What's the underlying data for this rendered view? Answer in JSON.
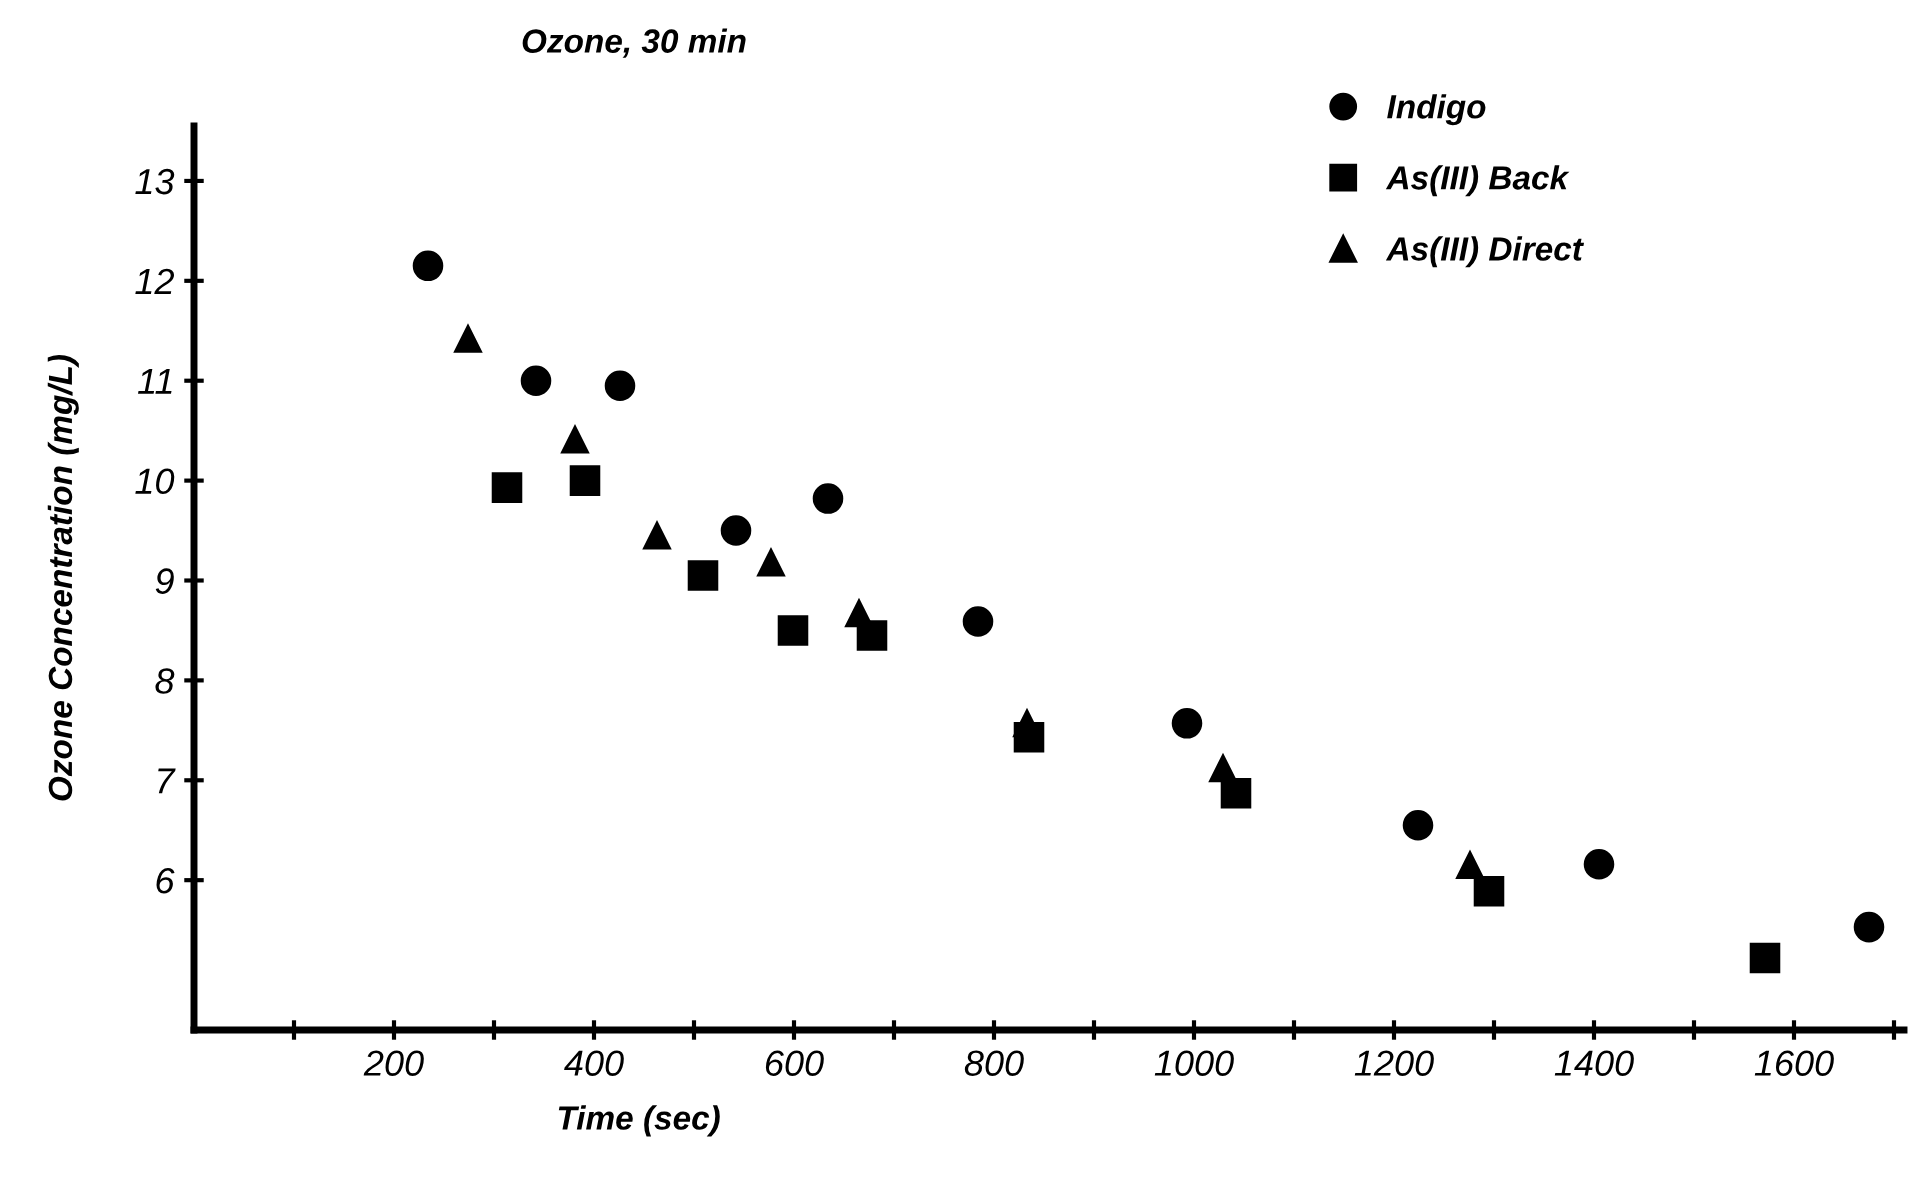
{
  "chart_data": {
    "type": "scatter",
    "title": "Ozone, 30 min",
    "xlabel": "Time (sec)",
    "ylabel": "Ozone Concentration (mg/L)",
    "series": [
      {
        "name": "Indigo",
        "color": "#000000",
        "marker": "circle",
        "x": [
          234,
          342,
          426,
          542,
          634,
          784,
          993,
          1224,
          1405,
          1675
        ],
        "values": [
          12.15,
          11.0,
          10.95,
          9.5,
          9.82,
          8.59,
          7.57,
          6.55,
          6.16,
          5.53
        ]
      },
      {
        "name": "As(III) Back",
        "color": "#000000",
        "marker": "square",
        "x": [
          313,
          391,
          509,
          599,
          678,
          835,
          1042,
          1295,
          1571
        ],
        "values": [
          9.93,
          10.0,
          9.05,
          8.5,
          8.45,
          7.43,
          6.87,
          5.89,
          5.22
        ]
      },
      {
        "name": "As(III) Direct",
        "color": "#000000",
        "marker": "triangle",
        "x": [
          274,
          381,
          463,
          577,
          665,
          833,
          1029,
          1276
        ],
        "values": [
          11.42,
          10.41,
          9.45,
          9.18,
          8.67,
          7.57,
          7.12,
          6.15
        ]
      }
    ],
    "xlim": [
      0,
      1710
    ],
    "ylim": [
      4.5,
      13.55
    ],
    "xticks": [
      {
        "value": 100,
        "label": null
      },
      200,
      {
        "value": 300,
        "label": null
      },
      400,
      {
        "value": 500,
        "label": null
      },
      600,
      {
        "value": 700,
        "label": null
      },
      800,
      {
        "value": 900,
        "label": null
      },
      1000,
      {
        "value": 1100,
        "label": null
      },
      1200,
      {
        "value": 1300,
        "label": null
      },
      1400,
      {
        "value": 1500,
        "label": null
      },
      1600,
      {
        "value": 1700,
        "label": null
      }
    ],
    "yticks": [
      6,
      7,
      8,
      9,
      10,
      11,
      12,
      13
    ],
    "grid": false,
    "legend": "top right"
  }
}
